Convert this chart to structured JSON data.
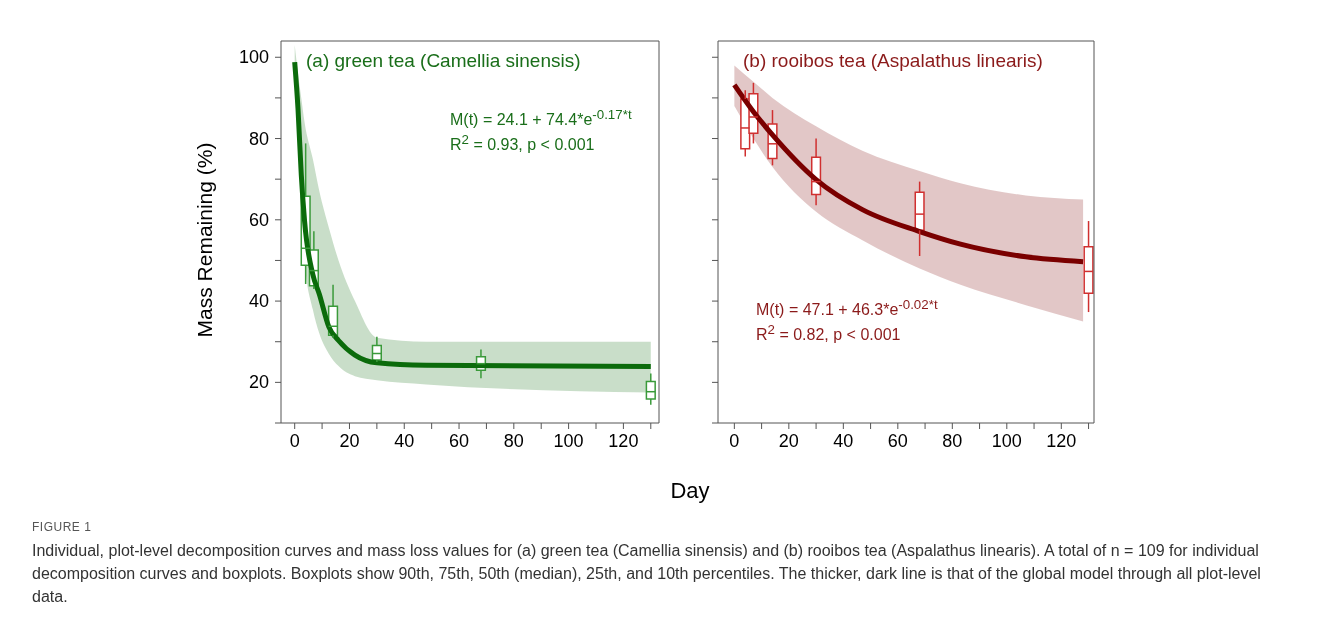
{
  "chart_data": [
    {
      "type": "line",
      "title": "(a) green tea (Camellia sinensis)",
      "ylabel": "Mass Remaining (%)",
      "xlabel": "Day",
      "xlim": [
        -5,
        133
      ],
      "ylim": [
        10,
        104
      ],
      "xticks": [
        0,
        {
          "value": 10,
          "label": null
        },
        20,
        {
          "value": 30,
          "label": null
        },
        40,
        {
          "value": 50,
          "label": null
        },
        60,
        {
          "value": 70,
          "label": null
        },
        80,
        {
          "value": 90,
          "label": null
        },
        100,
        {
          "value": 110,
          "label": null
        },
        120,
        {
          "value": 130,
          "label": null
        }
      ],
      "yticks": [
        {
          "value": 10,
          "label": null
        },
        20,
        {
          "value": 30,
          "label": null
        },
        40,
        {
          "value": 50,
          "label": null
        },
        60,
        {
          "value": 70,
          "label": null
        },
        80,
        {
          "value": 90,
          "label": null
        },
        100
      ],
      "series": [
        {
          "type": "line",
          "color": "#0b6b0b",
          "x": [
            0,
            1.2,
            2.4,
            3.6,
            6.6,
            9,
            12.5,
            16,
            22,
            30,
            48,
            130
          ],
          "values": [
            98.8,
            87.4,
            71.1,
            59.7,
            46.6,
            41.7,
            33.6,
            30.3,
            26.7,
            24.8,
            24.2,
            23.9
          ],
          "lower": [
            94,
            80,
            65,
            50,
            38,
            32,
            27,
            24,
            21.5,
            20.5,
            19.5,
            17.5
          ],
          "upper": [
            103,
            96,
            90,
            84,
            75,
            67,
            58,
            50,
            40,
            31,
            30,
            30
          ]
        },
        {
          "type": "box",
          "color": "#3a9a3a",
          "x": [
            4,
            7,
            14,
            30,
            68,
            130
          ],
          "boxes": [
            {
              "low": 44.2,
              "q1": 48.8,
              "median": 53,
              "q3": 65.8,
              "high": 78.8
            },
            {
              "low": 43,
              "q1": 43.8,
              "median": 47.5,
              "q3": 52.6,
              "high": 57.2
            },
            {
              "low": 31,
              "q1": 31.6,
              "median": 33.8,
              "q3": 38.7,
              "high": 44
            },
            {
              "low": 25,
              "q1": 25.5,
              "median": 27.1,
              "q3": 29.1,
              "high": 31.2
            },
            {
              "low": 21,
              "q1": 23,
              "median": 24.6,
              "q3": 26.3,
              "high": 28.1
            },
            {
              "low": 14.5,
              "q1": 15.9,
              "median": 17.7,
              "q3": 20.2,
              "high": 22.2
            }
          ]
        }
      ],
      "annotations": [
        "M(t) = 24.1 + 74.4*e$^{-0.17*t}$",
        "R$^{2}$ = 0.93, p < 0.001",
        "FIGURE 1",
        "Individual, plot-level decomposition curves and mass loss values for (a) green tea (Camellia sinensis) and (b) rooibos tea (Aspalathus linearis). A total of n = 109 for individual decomposition curves and boxplots. Boxplots show 90th, 75th, 50th (median), 25th, and 10th percentiles. The thicker, dark line is that of the global model through all plot-level data."
      ]
    },
    {
      "type": "line",
      "title": "(b) rooibos tea (Aspalathus linearis)",
      "tick_labels": "x",
      "xlim": [
        -6,
        132
      ],
      "ylim": [
        10,
        104
      ],
      "xticks": [
        0,
        {
          "value": 10,
          "label": null
        },
        20,
        {
          "value": 30,
          "label": null
        },
        40,
        {
          "value": 50,
          "label": null
        },
        60,
        {
          "value": 70,
          "label": null
        },
        80,
        {
          "value": 90,
          "label": null
        },
        100,
        {
          "value": 110,
          "label": null
        },
        120,
        {
          "value": 130,
          "label": null
        }
      ],
      "yticks": [
        {
          "value": 10,
          "label": null
        },
        {
          "value": 20,
          "label": null
        },
        {
          "value": 30,
          "label": null
        },
        {
          "value": 40,
          "label": null
        },
        {
          "value": 50,
          "label": null
        },
        {
          "value": 60,
          "label": null
        },
        {
          "value": 70,
          "label": null
        },
        {
          "value": 80,
          "label": null
        },
        {
          "value": 90,
          "label": null
        },
        {
          "value": 100,
          "label": null
        }
      ],
      "series": [
        {
          "type": "line",
          "color": "#7a0000",
          "x": [
            0,
            7,
            14,
            30,
            47,
            68,
            83,
            107,
            128
          ],
          "values": [
            93.2,
            86.6,
            80.9,
            69.9,
            62.5,
            57.1,
            54,
            50.9,
            49.7
          ],
          "lower": [
            88,
            80,
            73,
            62,
            55,
            48,
            44,
            39,
            35
          ],
          "upper": [
            98,
            94,
            90,
            83,
            77,
            72,
            69,
            66,
            65
          ]
        },
        {
          "type": "box",
          "color": "#d03030",
          "x": [
            4,
            7,
            14,
            30,
            68,
            130
          ],
          "boxes": [
            {
              "low": 75.6,
              "q1": 77.5,
              "median": 82.6,
              "q3": 89.7,
              "high": 91.9
            },
            {
              "low": 78.8,
              "q1": 81.3,
              "median": 85.3,
              "q3": 91,
              "high": 93.7
            },
            {
              "low": 73.4,
              "q1": 75.1,
              "median": 78.7,
              "q3": 83.6,
              "high": 87
            },
            {
              "low": 63.6,
              "q1": 66.2,
              "median": 69.4,
              "q3": 75.4,
              "high": 80
            },
            {
              "low": 51.1,
              "q1": 57.4,
              "median": 61.4,
              "q3": 66.8,
              "high": 69.4
            },
            {
              "low": 37.3,
              "q1": 41.9,
              "median": 47.3,
              "q3": 53.4,
              "high": 59.7
            }
          ]
        }
      ],
      "annotations": [
        "M(t) = 47.1 + 46.3*e$^{-0.02*t}$",
        "R$^{2}$ = 0.82, p < 0.001"
      ]
    }
  ]
}
